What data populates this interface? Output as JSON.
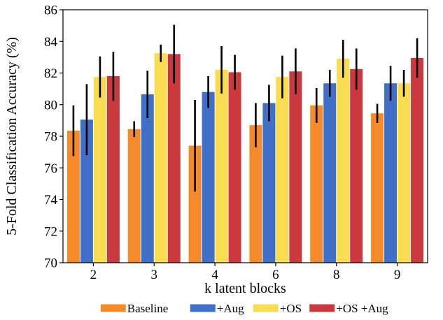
{
  "chart_data": {
    "type": "bar",
    "xlabel": "k latent blocks",
    "ylabel": "5-Fold Classification Accuracy (%)",
    "ylim": [
      70,
      86
    ],
    "yticks": [
      70,
      72,
      74,
      76,
      78,
      80,
      82,
      84,
      86
    ],
    "categories": [
      "2",
      "3",
      "4",
      "6",
      "8",
      "9"
    ],
    "legend_position": "bottom",
    "grid": false,
    "series": [
      {
        "name": "Baseline",
        "color": "#f58a2a",
        "values": [
          78.35,
          78.45,
          77.4,
          78.7,
          79.95,
          79.45
        ],
        "err": [
          1.6,
          0.5,
          2.9,
          1.4,
          1.1,
          0.6
        ]
      },
      {
        "name": "+Aug",
        "color": "#3f6fc6",
        "values": [
          79.05,
          80.65,
          80.8,
          80.1,
          81.35,
          81.35
        ],
        "err": [
          2.25,
          1.5,
          1.0,
          1.15,
          0.85,
          1.1
        ]
      },
      {
        "name": "+OS",
        "color": "#fadc50",
        "values": [
          81.75,
          83.25,
          82.2,
          81.75,
          82.9,
          81.35
        ],
        "err": [
          1.3,
          0.55,
          1.5,
          1.35,
          1.2,
          0.85
        ]
      },
      {
        "name": "+OS +Aug",
        "color": "#c9393d",
        "values": [
          81.8,
          83.2,
          82.05,
          82.1,
          82.25,
          82.95
        ],
        "err": [
          1.55,
          1.85,
          1.1,
          1.45,
          1.3,
          1.25
        ]
      }
    ]
  }
}
